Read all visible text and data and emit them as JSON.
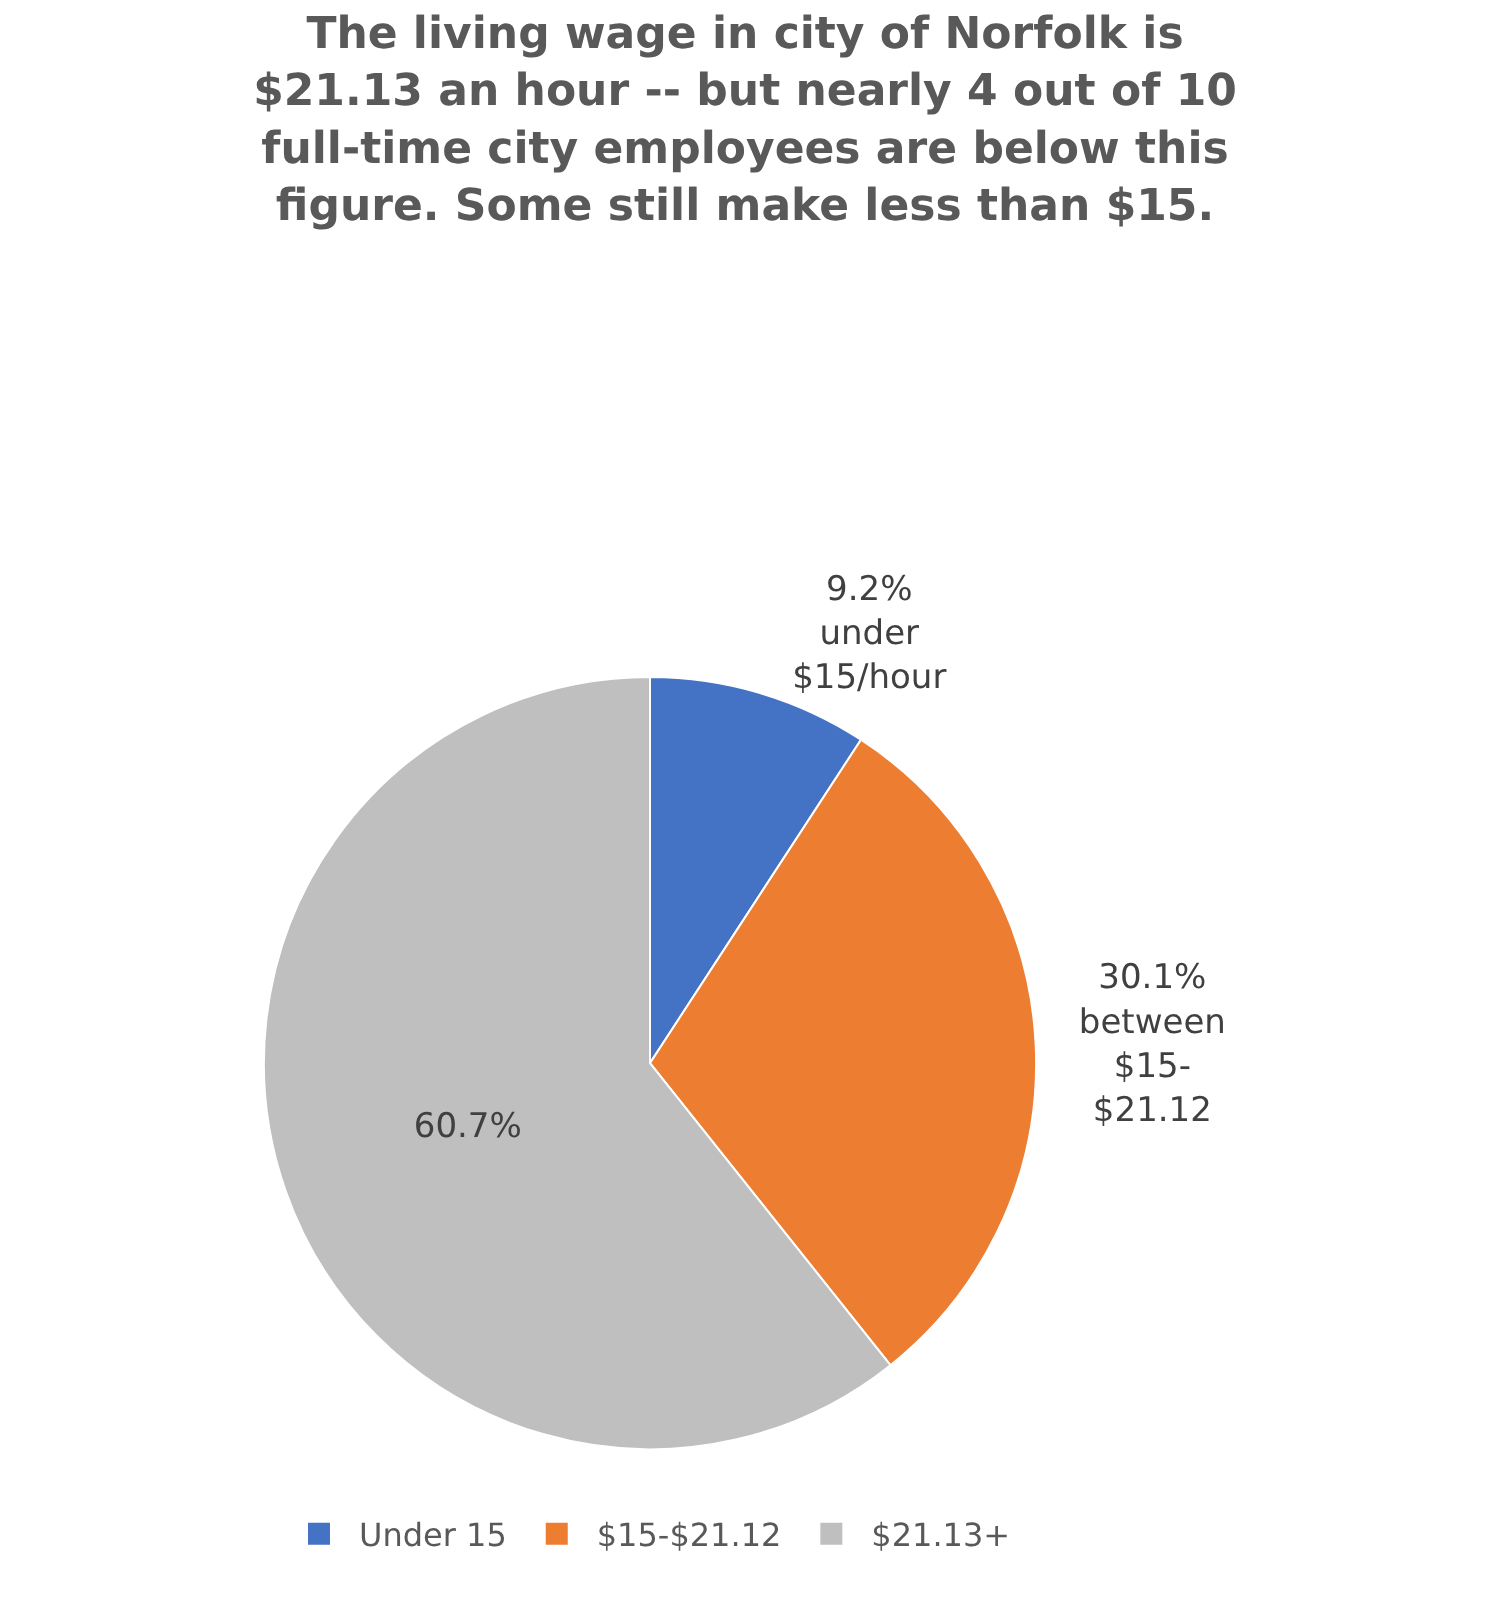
{
  "chart_data": {
    "type": "pie",
    "title": "The living wage in city of Norfolk is\n$21.13 an hour -- but nearly 4 out of 10\nfull-time city employees are below this\nfigure. Some still make less than $15.",
    "categories": [
      "Under 15",
      "$15-$21.12",
      "$21.13+"
    ],
    "values": [
      9.2,
      30.1,
      60.7
    ],
    "colors": [
      "#4472c4",
      "#ed7d31",
      "#bfbfbf"
    ],
    "value_labels": [
      "9.2%\nunder\n$15/hour",
      "30.1%\nbetween\n$15-\n$21.12",
      "60.7%"
    ],
    "legend": "bottom"
  }
}
